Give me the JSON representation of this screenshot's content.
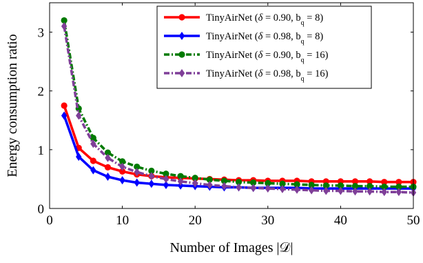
{
  "chart_data": {
    "type": "line",
    "xlabel": "Number of Images |𝒟|",
    "ylabel": "Energy consumption ratio",
    "xlim": [
      0,
      50
    ],
    "ylim": [
      0,
      3.5
    ],
    "xticks": [
      0,
      10,
      20,
      30,
      40,
      50
    ],
    "yticks": [
      0,
      1,
      2,
      3
    ],
    "grid": false,
    "legend_position": "top-right",
    "x": [
      2,
      4,
      6,
      8,
      10,
      12,
      14,
      16,
      18,
      20,
      22,
      24,
      26,
      28,
      30,
      32,
      34,
      36,
      38,
      40,
      42,
      44,
      46,
      48,
      50
    ],
    "series": [
      {
        "name": "TinyAirNet (δ = 0.90, b_q = 8)",
        "legend_parts": [
          "TinyAirNet (",
          "δ",
          " = 0.90, b",
          "q",
          " = 8)"
        ],
        "color": "#ff0000",
        "marker": "circle",
        "dash": "solid",
        "values": [
          1.75,
          1.03,
          0.81,
          0.7,
          0.63,
          0.58,
          0.55,
          0.53,
          0.52,
          0.51,
          0.5,
          0.49,
          0.48,
          0.48,
          0.47,
          0.47,
          0.47,
          0.46,
          0.46,
          0.46,
          0.46,
          0.46,
          0.45,
          0.45,
          0.45
        ]
      },
      {
        "name": "TinyAirNet (δ = 0.98, b_q = 8)",
        "legend_parts": [
          "TinyAirNet (",
          "δ",
          " = 0.98, b",
          "q",
          " = 8)"
        ],
        "color": "#0000ff",
        "marker": "diamond",
        "dash": "solid",
        "values": [
          1.58,
          0.88,
          0.65,
          0.54,
          0.48,
          0.44,
          0.42,
          0.4,
          0.39,
          0.38,
          0.37,
          0.36,
          0.36,
          0.35,
          0.35,
          0.35,
          0.35,
          0.34,
          0.34,
          0.34,
          0.34,
          0.34,
          0.34,
          0.34,
          0.34
        ]
      },
      {
        "name": "TinyAirNet (δ = 0.90, b_q = 16)",
        "legend_parts": [
          "TinyAirNet (",
          "δ",
          " = 0.90, b",
          "q",
          " = 16)"
        ],
        "color": "#007a00",
        "marker": "circle",
        "dash": "dashdot",
        "values": [
          3.2,
          1.7,
          1.2,
          0.95,
          0.8,
          0.71,
          0.64,
          0.59,
          0.55,
          0.52,
          0.49,
          0.47,
          0.45,
          0.44,
          0.43,
          0.42,
          0.41,
          0.4,
          0.39,
          0.39,
          0.38,
          0.38,
          0.37,
          0.37,
          0.37
        ]
      },
      {
        "name": "TinyAirNet (δ = 0.98, b_q = 16)",
        "legend_parts": [
          "TinyAirNet (",
          "δ",
          " = 0.98, b",
          "q",
          " = 16)"
        ],
        "color": "#7f3f98",
        "marker": "diamond",
        "dash": "dashdot",
        "values": [
          3.1,
          1.58,
          1.1,
          0.86,
          0.71,
          0.62,
          0.55,
          0.5,
          0.46,
          0.43,
          0.4,
          0.38,
          0.36,
          0.35,
          0.34,
          0.33,
          0.32,
          0.31,
          0.3,
          0.3,
          0.29,
          0.29,
          0.28,
          0.28,
          0.27
        ]
      }
    ]
  }
}
